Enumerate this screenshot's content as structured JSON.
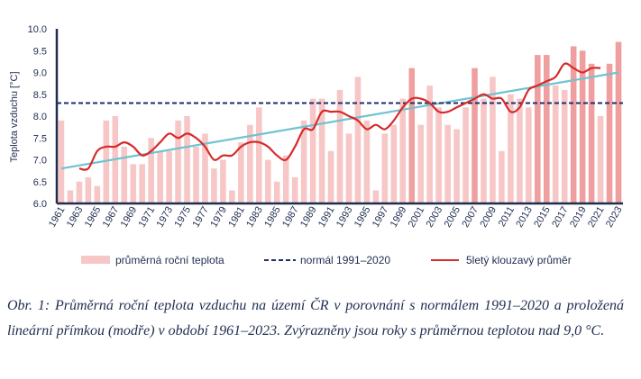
{
  "caption": "Obr. 1: Průměrná roční teplota vzduchu na území ČR v porovnání s normálem 1991–2020 a proložená lineární přímkou (modře) v období 1961–2023. Zvýrazněny jsou roky s průměrnou teplotou nad 9,0 °C.",
  "colors": {
    "bar": "#f7c6c6",
    "bar_highlight": "#ef9f9f",
    "normal": "#1f2d6b",
    "moving_avg": "#d62b2b",
    "trend": "#6fc3d0",
    "axis": "#1f2d4f"
  },
  "chart_data": {
    "type": "bar",
    "ylabel": "Teplota vzduchu [°C]",
    "ylim": [
      6.0,
      10.0
    ],
    "yticks": [
      "6.0",
      "6.5",
      "7.0",
      "7.5",
      "8.0",
      "8.5",
      "9.0",
      "9.5",
      "10.0"
    ],
    "grid": false,
    "legend_position": "bottom",
    "categories": [
      "1961",
      "1962",
      "1963",
      "1964",
      "1965",
      "1966",
      "1967",
      "1968",
      "1969",
      "1970",
      "1971",
      "1972",
      "1973",
      "1974",
      "1975",
      "1976",
      "1977",
      "1978",
      "1979",
      "1980",
      "1981",
      "1982",
      "1983",
      "1984",
      "1985",
      "1986",
      "1987",
      "1988",
      "1989",
      "1990",
      "1991",
      "1992",
      "1993",
      "1994",
      "1995",
      "1996",
      "1997",
      "1998",
      "1999",
      "2000",
      "2001",
      "2002",
      "2003",
      "2004",
      "2005",
      "2006",
      "2007",
      "2008",
      "2009",
      "2010",
      "2011",
      "2012",
      "2013",
      "2014",
      "2015",
      "2016",
      "2017",
      "2018",
      "2019",
      "2020",
      "2021",
      "2022",
      "2023"
    ],
    "xtick_labels": [
      "1961",
      "1963",
      "1965",
      "1967",
      "1969",
      "1971",
      "1973",
      "1975",
      "1977",
      "1979",
      "1981",
      "1983",
      "1985",
      "1987",
      "1989",
      "1991",
      "1993",
      "1995",
      "1997",
      "1999",
      "2001",
      "2003",
      "2005",
      "2007",
      "2009",
      "2011",
      "2013",
      "2015",
      "2017",
      "2019",
      "2021",
      "2023"
    ],
    "series": [
      {
        "name": "průměrná roční teplota",
        "type": "bar",
        "values": [
          7.9,
          6.3,
          6.5,
          6.6,
          6.4,
          7.9,
          8.0,
          7.3,
          6.9,
          6.9,
          7.5,
          7.2,
          7.2,
          7.9,
          8.0,
          7.3,
          7.6,
          6.8,
          7.0,
          6.3,
          7.4,
          7.8,
          8.2,
          7.0,
          6.5,
          7.1,
          6.6,
          7.9,
          8.4,
          8.4,
          7.2,
          8.6,
          7.6,
          8.9,
          7.9,
          6.3,
          7.6,
          7.8,
          8.4,
          9.1,
          7.8,
          8.7,
          8.2,
          7.8,
          7.7,
          8.2,
          9.1,
          8.4,
          8.9,
          7.2,
          8.5,
          8.4,
          8.2,
          9.4,
          9.4,
          8.7,
          8.6,
          9.6,
          9.5,
          9.2,
          8.0,
          9.2,
          9.7
        ]
      },
      {
        "name": "normál 1991–2020",
        "type": "line",
        "value": 8.3
      },
      {
        "name": "5letý klouzavý průměr",
        "type": "line",
        "x": [
          "1963",
          "1964",
          "1965",
          "1966",
          "1967",
          "1968",
          "1969",
          "1970",
          "1971",
          "1972",
          "1973",
          "1974",
          "1975",
          "1976",
          "1977",
          "1978",
          "1979",
          "1980",
          "1981",
          "1982",
          "1983",
          "1984",
          "1985",
          "1986",
          "1987",
          "1988",
          "1989",
          "1990",
          "1991",
          "1992",
          "1993",
          "1994",
          "1995",
          "1996",
          "1997",
          "1998",
          "1999",
          "2000",
          "2001",
          "2002",
          "2003",
          "2004",
          "2005",
          "2006",
          "2007",
          "2008",
          "2009",
          "2010",
          "2011",
          "2012",
          "2013",
          "2014",
          "2015",
          "2016",
          "2017",
          "2018",
          "2019",
          "2020",
          "2021"
        ],
        "values": [
          6.8,
          6.8,
          7.2,
          7.3,
          7.3,
          7.4,
          7.3,
          7.1,
          7.2,
          7.4,
          7.6,
          7.5,
          7.6,
          7.5,
          7.3,
          7.0,
          7.1,
          7.1,
          7.3,
          7.4,
          7.4,
          7.3,
          7.1,
          7.0,
          7.3,
          7.7,
          7.7,
          8.1,
          8.1,
          8.1,
          8.0,
          7.9,
          7.7,
          7.8,
          7.7,
          7.9,
          8.2,
          8.4,
          8.4,
          8.3,
          8.1,
          8.1,
          8.2,
          8.3,
          8.4,
          8.5,
          8.4,
          8.4,
          8.1,
          8.2,
          8.6,
          8.7,
          8.8,
          8.9,
          9.2,
          9.1,
          9.0,
          9.1,
          9.1
        ]
      },
      {
        "name": "lineární trend",
        "type": "line",
        "x": [
          "1961",
          "2023"
        ],
        "values": [
          6.8,
          9.0
        ]
      }
    ],
    "highlight_threshold": 9.0
  }
}
